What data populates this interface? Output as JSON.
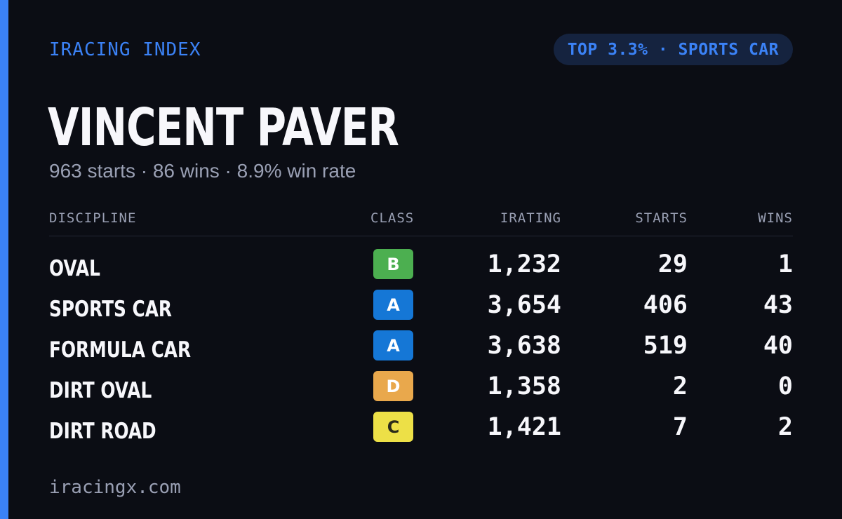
{
  "brand": "IRACING INDEX",
  "badge": "TOP 3.3% · SPORTS CAR",
  "driver": {
    "name": "VINCENT PAVER",
    "summary": "963 starts · 86 wins · 8.9% win rate"
  },
  "table": {
    "headers": {
      "discipline": "DISCIPLINE",
      "class": "CLASS",
      "irating": "IRATING",
      "starts": "STARTS",
      "wins": "WINS"
    },
    "rows": [
      {
        "discipline": "OVAL",
        "class": "B",
        "class_color": "#4caf50",
        "class_text_color": "#ffffff",
        "irating": "1,232",
        "starts": "29",
        "wins": "1"
      },
      {
        "discipline": "SPORTS CAR",
        "class": "A",
        "class_color": "#1577d6",
        "class_text_color": "#ffffff",
        "irating": "3,654",
        "starts": "406",
        "wins": "43"
      },
      {
        "discipline": "FORMULA CAR",
        "class": "A",
        "class_color": "#1577d6",
        "class_text_color": "#ffffff",
        "irating": "3,638",
        "starts": "519",
        "wins": "40"
      },
      {
        "discipline": "DIRT OVAL",
        "class": "D",
        "class_color": "#e9a84c",
        "class_text_color": "#ffffff",
        "irating": "1,358",
        "starts": "2",
        "wins": "0"
      },
      {
        "discipline": "DIRT ROAD",
        "class": "C",
        "class_color": "#ede047",
        "class_text_color": "#2a2a1a",
        "irating": "1,421",
        "starts": "7",
        "wins": "2"
      }
    ]
  },
  "footer": "iracingx.com",
  "colors": {
    "accent": "#3b82f6",
    "background": "#0b0d14",
    "badge_bg": "#15233f",
    "muted": "#9aa0b4"
  }
}
